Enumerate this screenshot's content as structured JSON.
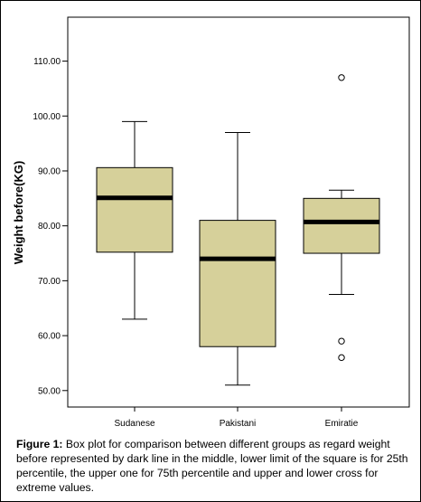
{
  "chart_data": {
    "type": "box",
    "ylabel": "Weight before(KG)",
    "ylim": [
      47,
      118
    ],
    "y_ticks": [
      50,
      60,
      70,
      80,
      90,
      100,
      110
    ],
    "y_tick_labels": [
      "50.00",
      "60.00",
      "70.00",
      "80.00",
      "90.00",
      "100.00",
      "110.00"
    ],
    "categories": [
      "Sudanese",
      "Pakistani",
      "Emiratie"
    ],
    "boxes": [
      {
        "category": "Sudanese",
        "whisker_low": 63,
        "q1": 75.2,
        "median": 85.1,
        "q3": 90.6,
        "whisker_high": 99,
        "outliers": []
      },
      {
        "category": "Pakistani",
        "whisker_low": 51,
        "q1": 58,
        "median": 74,
        "q3": 81,
        "whisker_high": 97,
        "outliers": []
      },
      {
        "category": "Emiratie",
        "whisker_low": 67.5,
        "q1": 75,
        "median": 80.7,
        "q3": 85,
        "whisker_high": 86.5,
        "outliers": [
          107,
          59,
          56
        ]
      }
    ],
    "box_color": "#d6d09a",
    "grid": false
  },
  "caption": {
    "label": "Figure 1:",
    "text": " Box plot for comparison between different groups as regard weight before represented by dark line in the middle, lower limit of the square is for 25th percentile, the upper one for 75th percentile and upper and lower cross for extreme values."
  }
}
